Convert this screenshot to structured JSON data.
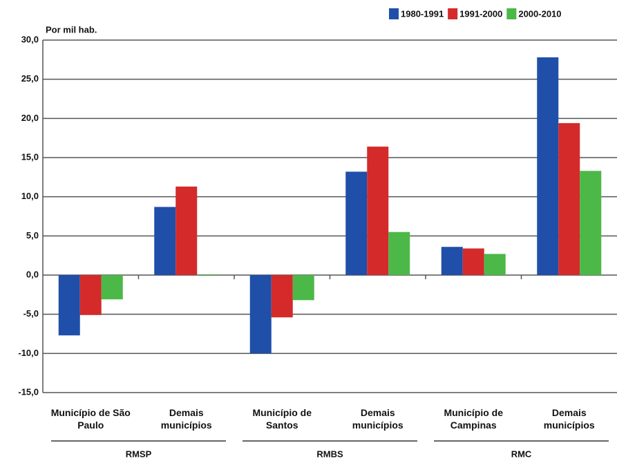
{
  "chart_data": {
    "type": "bar",
    "y_label": "Por mil hab.",
    "categories": [
      "Município de São Paulo",
      "Demais municípios",
      "Município de Santos",
      "Demais municípios",
      "Município de Campinas",
      "Demais municípios"
    ],
    "groups": [
      "RMSP",
      "RMBS",
      "RMC"
    ],
    "series": [
      {
        "name": "1980-1991",
        "color": "#1f4fa8",
        "values": [
          -7.7,
          8.7,
          -10.0,
          13.2,
          3.6,
          27.8
        ]
      },
      {
        "name": "1991-2000",
        "color": "#d42a2a",
        "values": [
          -5.1,
          11.3,
          -5.4,
          16.4,
          3.4,
          19.4
        ]
      },
      {
        "name": "2000-2010",
        "color": "#4cb848",
        "values": [
          -3.1,
          0.1,
          -3.2,
          5.5,
          2.7,
          13.3
        ]
      }
    ],
    "ylim": [
      -15,
      30
    ],
    "yticks": [
      {
        "value": -15,
        "label": "-15,0"
      },
      {
        "value": -10,
        "label": "-10,0"
      },
      {
        "value": -5,
        "label": "-5,0"
      },
      {
        "value": 0,
        "label": "0,0"
      },
      {
        "value": 5,
        "label": "5,0"
      },
      {
        "value": 10,
        "label": "10,0"
      },
      {
        "value": 15,
        "label": "15,0"
      },
      {
        "value": 20,
        "label": "20,0"
      },
      {
        "value": 25,
        "label": "25,0"
      },
      {
        "value": 30,
        "label": "30,0"
      }
    ],
    "grid": true,
    "legend": "top-right"
  }
}
